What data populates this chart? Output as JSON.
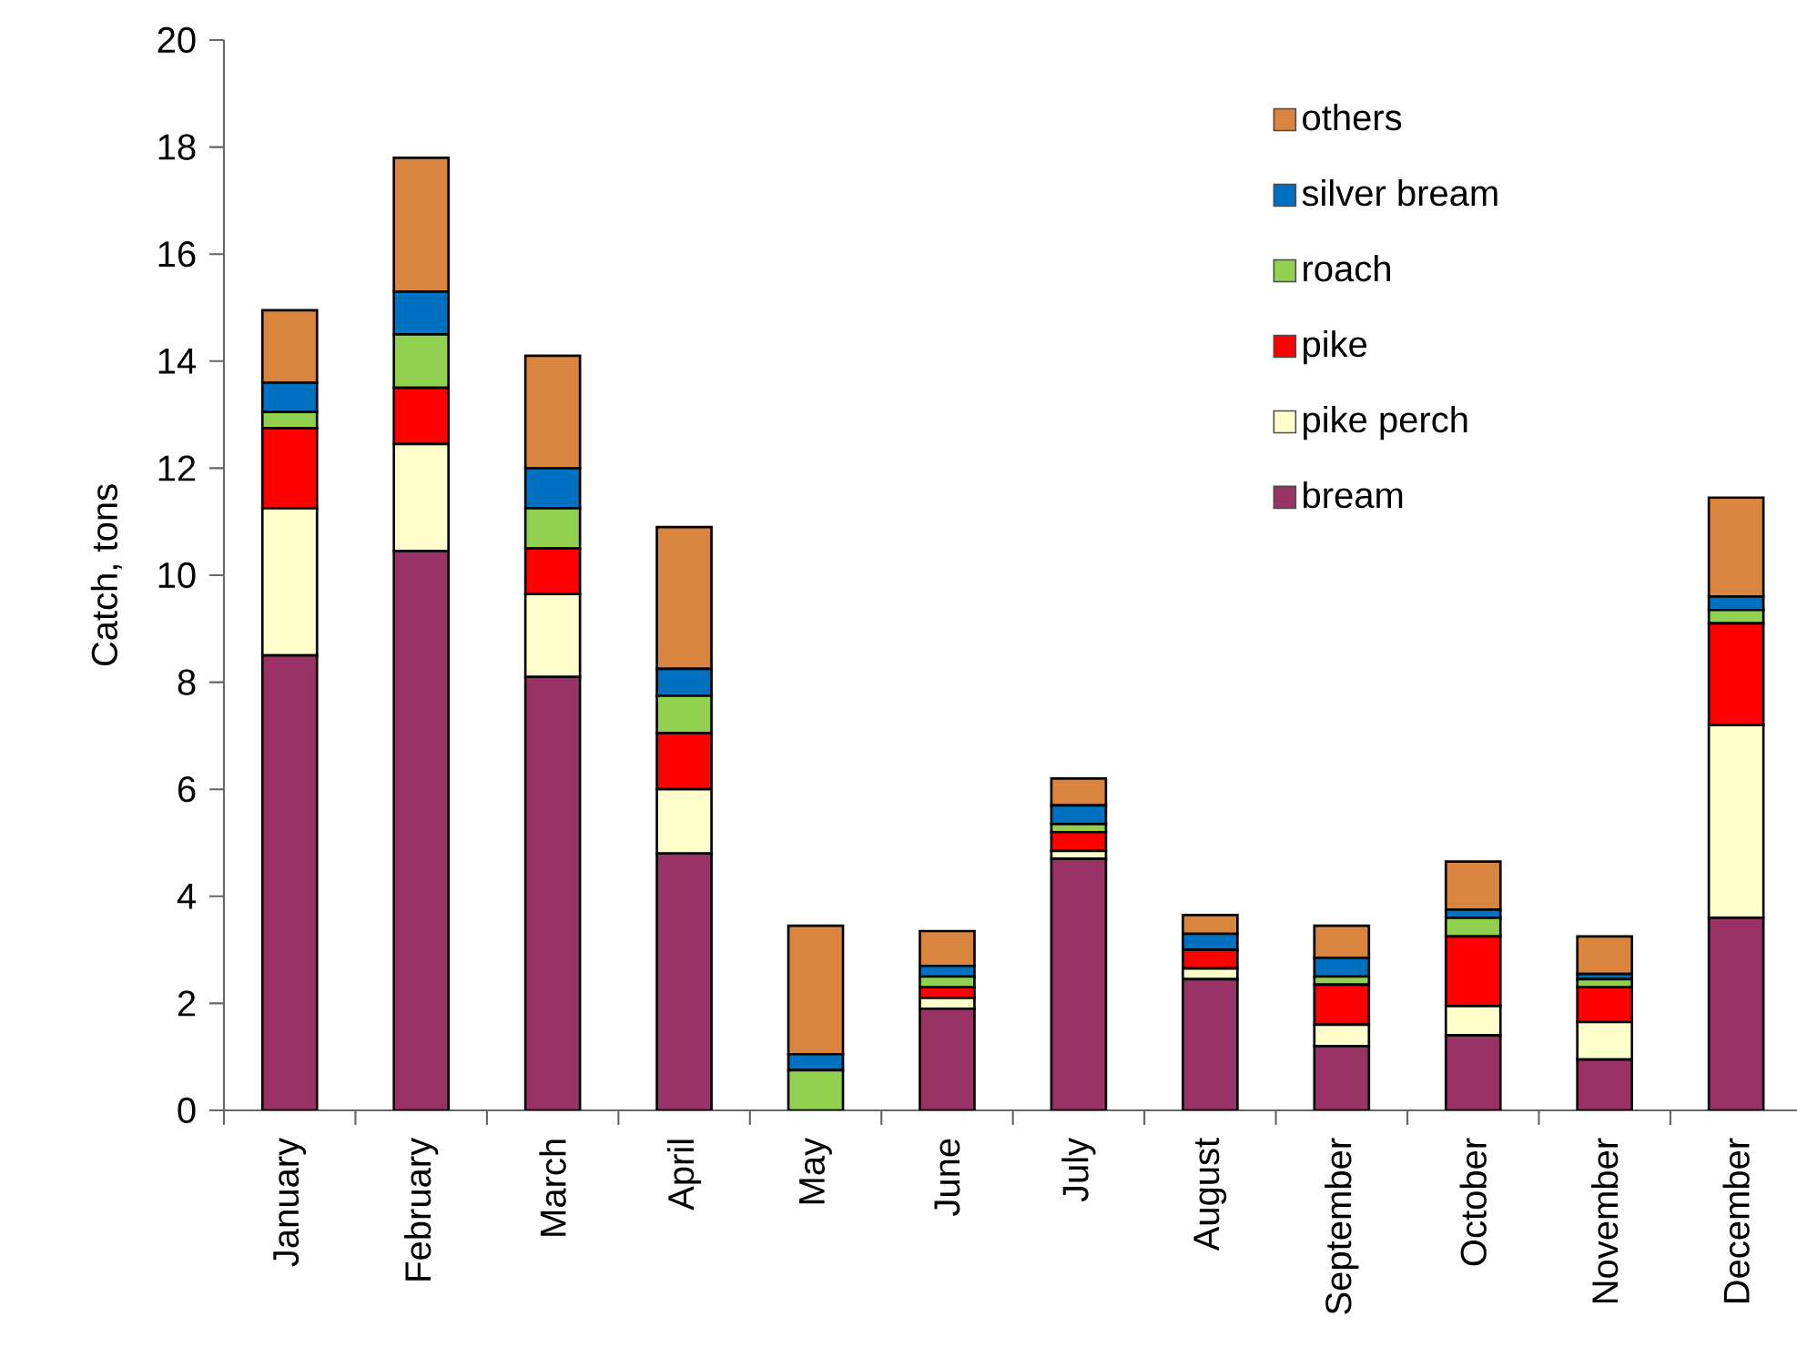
{
  "chart_data": {
    "type": "bar",
    "stacked": true,
    "ylabel": "Catch, tons",
    "categories": [
      "January",
      "February",
      "March",
      "April",
      "May",
      "June",
      "July",
      "August",
      "September",
      "October",
      "November",
      "December"
    ],
    "series": [
      {
        "name": "bream",
        "color": "#993366",
        "values": [
          8.5,
          10.45,
          8.1,
          4.8,
          0,
          1.9,
          4.7,
          2.45,
          1.2,
          1.4,
          0.95,
          3.6
        ]
      },
      {
        "name": "pike perch",
        "color": "#ffffcc",
        "values": [
          2.75,
          2.0,
          1.55,
          1.2,
          0,
          0.2,
          0.15,
          0.2,
          0.4,
          0.55,
          0.7,
          3.6
        ]
      },
      {
        "name": "pike",
        "color": "#ff0000",
        "values": [
          1.5,
          1.05,
          0.85,
          1.05,
          0,
          0.2,
          0.35,
          0.35,
          0.75,
          1.3,
          0.65,
          1.9
        ]
      },
      {
        "name": "roach",
        "color": "#92d050",
        "values": [
          0.3,
          1.0,
          0.75,
          0.7,
          0.75,
          0.2,
          0.15,
          null,
          0.15,
          0.35,
          0.15,
          0.25
        ]
      },
      {
        "name": "silver bream",
        "color": "#0070c0",
        "values": [
          0.55,
          0.8,
          0.75,
          0.5,
          0.3,
          0.2,
          0.35,
          0.3,
          0.35,
          0.15,
          0.1,
          0.25
        ]
      },
      {
        "name": "others",
        "color": "#d9843f",
        "values": [
          1.35,
          2.5,
          2.1,
          2.65,
          2.4,
          0.65,
          0.5,
          0.35,
          0.6,
          0.9,
          0.7,
          1.85
        ]
      }
    ],
    "ylim": [
      0,
      20
    ],
    "yticks": [
      0,
      2,
      4,
      6,
      8,
      10,
      12,
      14,
      16,
      18,
      20
    ],
    "legend": "top right",
    "grid": false
  }
}
